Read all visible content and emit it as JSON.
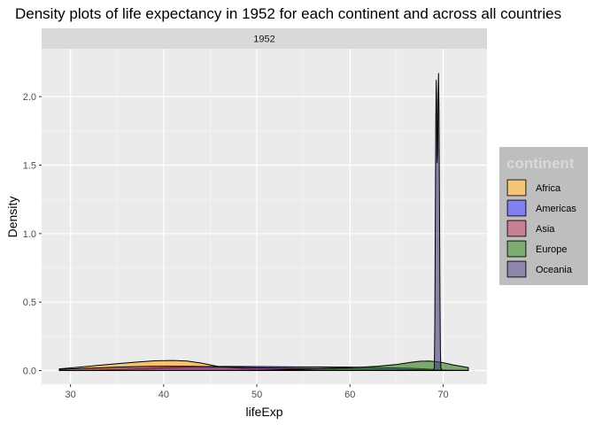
{
  "chart_data": {
    "type": "area",
    "title": "Density plots of life expectancy in 1952 for each continent and across all countries",
    "facet_label": "1952",
    "xlabel": "lifeExp",
    "ylabel": "Density",
    "xlim": [
      26.9,
      74.7
    ],
    "ylim": [
      -0.1,
      2.35
    ],
    "x_ticks": [
      30,
      40,
      50,
      60,
      70
    ],
    "y_ticks": [
      0.0,
      0.5,
      1.0,
      1.5,
      2.0
    ],
    "x_tick_labels": [
      "30",
      "40",
      "50",
      "60",
      "70"
    ],
    "y_tick_labels": [
      "0.0",
      "0.5",
      "1.0",
      "1.5",
      "2.0"
    ],
    "grid": true,
    "legend": {
      "title": "continent",
      "position": "right",
      "background": "#bebebe"
    },
    "series": [
      {
        "name": "Africa",
        "color": "#f5a623",
        "x": [
          28.8,
          31,
          33,
          35,
          37,
          39,
          41,
          42.5,
          44,
          46,
          50,
          55,
          60,
          65,
          70,
          72.7
        ],
        "y": [
          0.012,
          0.025,
          0.038,
          0.05,
          0.062,
          0.071,
          0.074,
          0.07,
          0.055,
          0.028,
          0.006,
          0.001,
          0,
          0,
          0,
          0
        ]
      },
      {
        "name": "Americas",
        "color": "#3333ee",
        "x": [
          28.8,
          32,
          36,
          38,
          40,
          43,
          46,
          50,
          54,
          58,
          62,
          66,
          68,
          70,
          72.7
        ],
        "y": [
          0,
          0.003,
          0.01,
          0.015,
          0.02,
          0.028,
          0.03,
          0.029,
          0.027,
          0.026,
          0.024,
          0.018,
          0.012,
          0.004,
          0.001
        ]
      },
      {
        "name": "Asia",
        "color": "#aa3355",
        "x": [
          28.8,
          31,
          35,
          38,
          40,
          43,
          46,
          50,
          55,
          60,
          65,
          70,
          72.7
        ],
        "y": [
          0.008,
          0.015,
          0.025,
          0.03,
          0.032,
          0.031,
          0.027,
          0.02,
          0.014,
          0.011,
          0.008,
          0.004,
          0.002
        ]
      },
      {
        "name": "Europe",
        "color": "#2e7d1e",
        "x": [
          28.8,
          40,
          45,
          50,
          55,
          58,
          61,
          63,
          65,
          66.5,
          67.5,
          68.5,
          69.2,
          70,
          71,
          72.7
        ],
        "y": [
          0,
          0,
          0,
          0.002,
          0.009,
          0.016,
          0.024,
          0.032,
          0.045,
          0.06,
          0.068,
          0.07,
          0.066,
          0.058,
          0.042,
          0.022
        ]
      },
      {
        "name": "Oceania",
        "color": "#4a3e7a",
        "x": [
          68.95,
          69.05,
          69.1,
          69.15,
          69.2,
          69.25,
          69.3,
          69.35,
          69.4,
          69.45,
          69.5,
          69.55,
          69.6,
          69.65,
          69.7,
          69.75,
          69.85
        ],
        "y": [
          0,
          0.02,
          0.35,
          1.05,
          1.75,
          2.12,
          1.95,
          1.52,
          1.6,
          2.0,
          2.17,
          1.9,
          1.3,
          0.6,
          0.15,
          0.02,
          0
        ]
      }
    ]
  }
}
